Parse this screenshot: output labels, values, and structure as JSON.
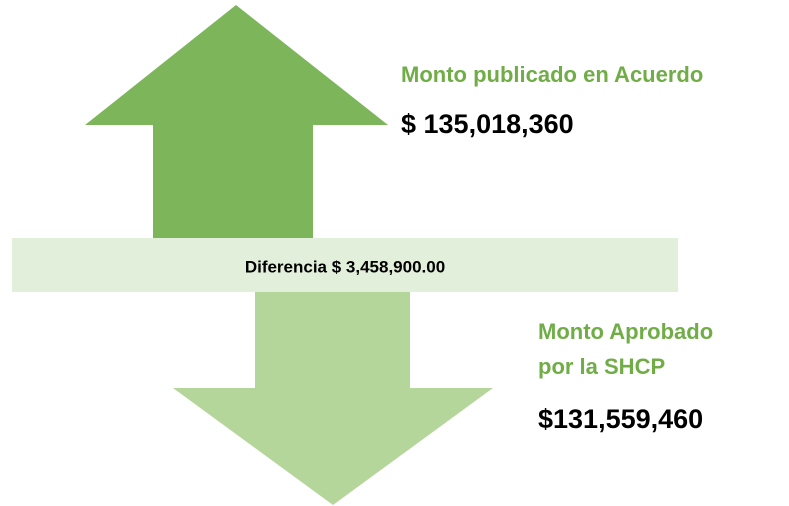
{
  "upper": {
    "label": "Monto publicado en Acuerdo",
    "amount": "$ 135,018,360"
  },
  "difference": "Diferencia $ 3,458,900.00",
  "lower": {
    "label_lines": [
      "Monto Aprobado",
      "por la SHCP"
    ],
    "amount": "$131,559,460"
  }
}
